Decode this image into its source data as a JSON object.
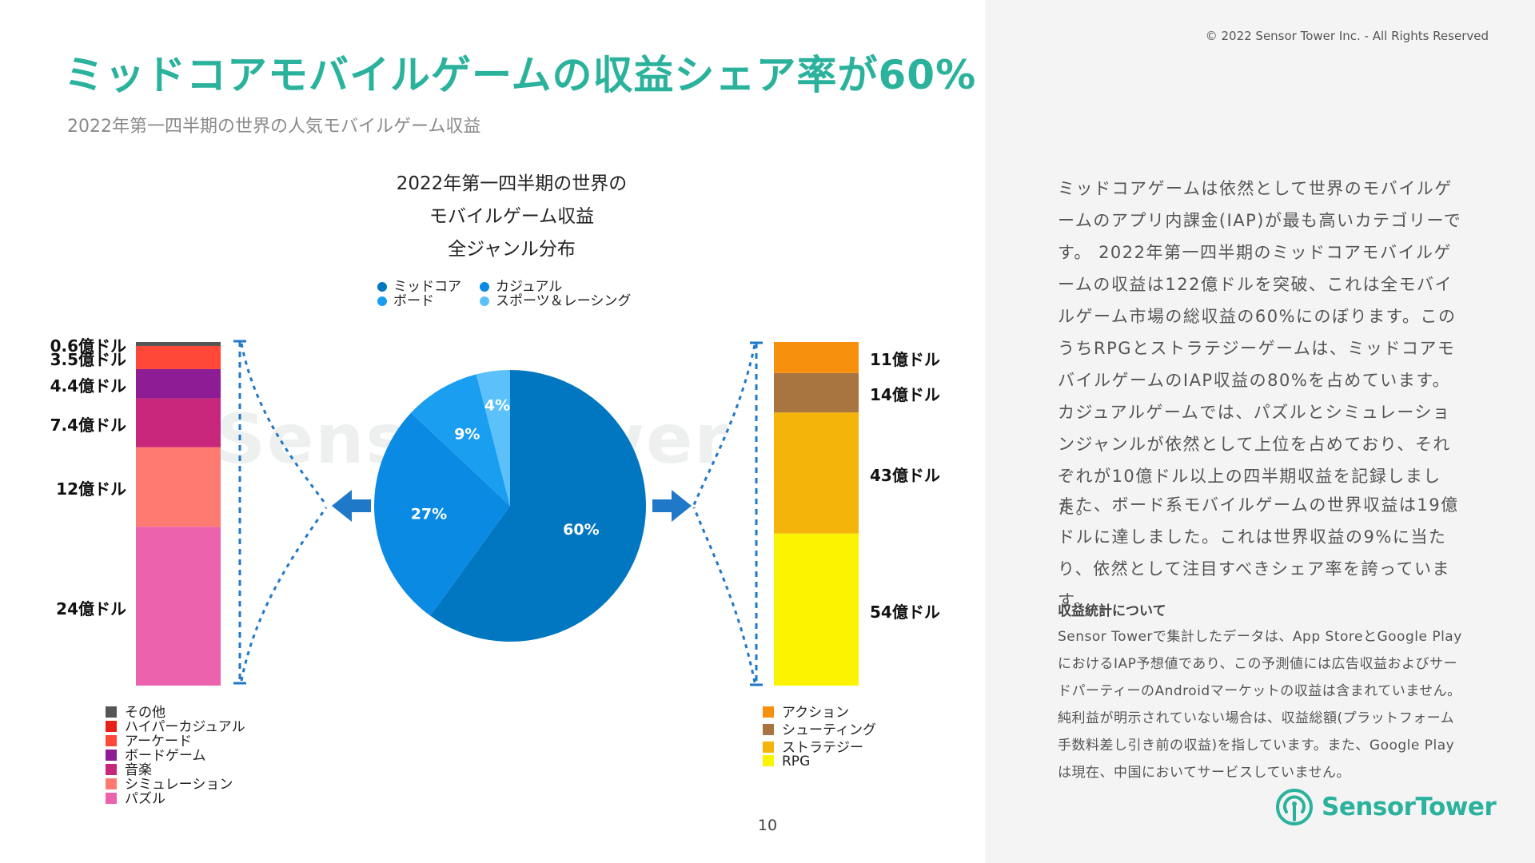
{
  "header": {
    "title": "ミッドコアモバイルゲームの収益シェア率が60%",
    "subtitle": "2022年第一四半期の世界の人気モバイルゲーム収益",
    "copyright": "© 2022 Sensor Tower Inc. - All Rights Reserved"
  },
  "chart_data": [
    {
      "type": "pie",
      "title_lines": [
        "2022年第一四半期の世界の",
        "モバイルゲーム収益",
        "全ジャンル分布"
      ],
      "categories": [
        "ミッドコア",
        "カジュアル",
        "ボード",
        "スポーツ＆レーシング"
      ],
      "values": [
        60,
        27,
        9,
        4
      ],
      "labels": [
        "60%",
        "27%",
        "9%",
        "4%"
      ],
      "colors": [
        "#0077c0",
        "#0a8ae3",
        "#1a9ef0",
        "#5cc1fb"
      ],
      "legend_position": "top"
    },
    {
      "type": "bar",
      "stacked": true,
      "categories": [
        "パズル",
        "シミュレーション",
        "音楽",
        "ボードゲーム",
        "アーケード",
        "ハイパーカジュアル",
        "その他"
      ],
      "values": [
        24,
        12,
        7.4,
        4.4,
        3.5,
        0,
        0.6
      ],
      "labels": [
        "24億ドル",
        "12億ドル",
        "7.4億ドル",
        "4.4億ドル",
        "3.5億ドル",
        "",
        "0.6億ドル"
      ],
      "legend": [
        "その他",
        "ハイパーカジュアル",
        "アーケード",
        "ボードゲーム",
        "音楽",
        "シミュレーション",
        "パズル"
      ],
      "legend_colors": [
        "#555555",
        "#e8201a",
        "#ff4838",
        "#8e1c94",
        "#c8267a",
        "#ff7b72",
        "#ec62ac"
      ],
      "colors": [
        "#ec62ac",
        "#ff7b72",
        "#c8267a",
        "#8e1c94",
        "#ff4838",
        "#e8201a",
        "#555555"
      ],
      "unit": "億ドル"
    },
    {
      "type": "bar",
      "stacked": true,
      "categories": [
        "RPG",
        "ストラテジー",
        "シューティング",
        "アクション"
      ],
      "values": [
        54,
        43,
        14,
        11
      ],
      "labels": [
        "54億ドル",
        "43億ドル",
        "14億ドル",
        "11億ドル"
      ],
      "legend": [
        "アクション",
        "シューティング",
        "ストラテジー",
        "RPG"
      ],
      "legend_colors": [
        "#f7900c",
        "#a87440",
        "#f4b40a",
        "#fbf300"
      ],
      "colors": [
        "#fbf300",
        "#f4b40a",
        "#a87440",
        "#f7900c"
      ],
      "unit": "億ドル"
    }
  ],
  "watermark_text": "SensorTower",
  "page_number": "10",
  "sidebar": {
    "paragraph1": "ミッドコアゲームは依然として世界のモバイルゲームのアプリ内課金(IAP)が最も高いカテゴリーです。 2022年第一四半期のミッドコアモバイルゲームの収益は122億ドルを突破、これは全モバイルゲーム市場の総収益の60%にのぼります。このうちRPGとストラテジーゲームは、ミッドコアモバイルゲームのIAP収益の80%を占めています。 カジュアルゲームでは、パズルとシミュレーションジャンルが依然として上位を占めており、それぞれが10億ドル以上の四半期収益を記録しました。",
    "paragraph2": "また、ボード系モバイルゲームの世界収益は19億ドルに達しました。これは世界収益の9%に当たり、依然として注目すべきシェア率を誇っています。",
    "about_heading": "収益統計について",
    "about_text": "Sensor Towerで集計したデータは、App StoreとGoogle PlayにおけるIAP予想値であり、この予測値には広告収益およびサードパーティーのAndroidマーケットの収益は含まれていません。純利益が明示されていない場合は、収益総額(プラットフォーム手数料差し引き前の収益)を指しています。また、Google Playは現在、中国においてサービスしていません。",
    "brand_name": "SensorTower"
  }
}
